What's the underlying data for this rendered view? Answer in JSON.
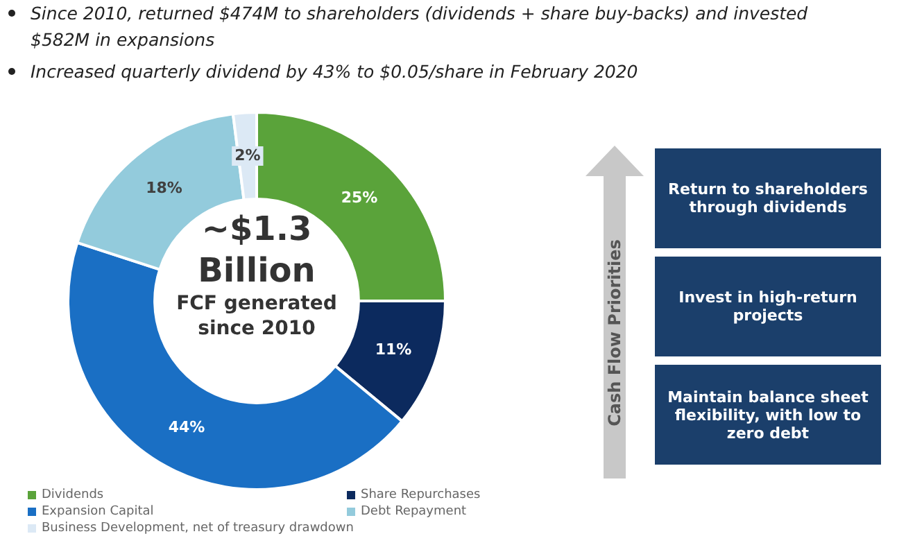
{
  "chart_data": [
    {
      "type": "donut",
      "categories": [
        "Dividends",
        "Share Repurchases",
        "Expansion Capital",
        "Debt Repayment",
        "Business Development, net of treasury drawdown"
      ],
      "values": [
        25,
        11,
        44,
        18,
        2
      ],
      "colors": [
        "#5aa33a",
        "#0c2a5e",
        "#1a6fc4",
        "#93cbdc",
        "#dce9f5"
      ],
      "value_labels": [
        "25%",
        "11%",
        "44%",
        "18%",
        "2%"
      ],
      "legend": "bottom",
      "annotations": [
        "Since 2010, returned $474M to shareholders (dividends + share buy-backs) and invested $582M in expansions",
        "Increased quarterly dividend by 43% to $0.05/share in February 2020",
        "~$1.3",
        "Billion",
        "FCF generated since 2010"
      ]
    },
    {
      "type": "other",
      "title": "Cash Flow Priorities",
      "annotations": [
        "Return to shareholders through dividends",
        "Invest in high-return projects",
        "Maintain balance sheet flexibility, with low to zero debt"
      ]
    }
  ]
}
